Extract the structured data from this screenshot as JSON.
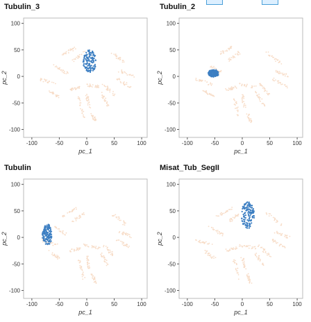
{
  "legend_swatches": [
    "#4a9fd8",
    "#4a9fd8"
  ],
  "colors": {
    "background_points": "#f7dcc7",
    "highlight": "#3d7fc2",
    "frame": "#bbbbbb"
  },
  "chart_data": [
    {
      "type": "scatter",
      "title": "Tubulin_3",
      "xlabel": "pc_1",
      "ylabel": "pc_2",
      "xlim": [
        -115,
        110
      ],
      "ylim": [
        -115,
        110
      ],
      "xticks": [
        -100,
        -50,
        0,
        50,
        100
      ],
      "yticks": [
        100,
        50,
        0,
        -50,
        -100
      ],
      "grid": false,
      "highlight_cluster": {
        "center": [
          5,
          28
        ],
        "spread": [
          12,
          22
        ]
      }
    },
    {
      "type": "scatter",
      "title": "Tubulin_2",
      "xlabel": "pc_1",
      "ylabel": "pc_2",
      "xlim": [
        -115,
        110
      ],
      "ylim": [
        -115,
        110
      ],
      "xticks": [
        -100,
        -50,
        0,
        50,
        100
      ],
      "yticks": [
        100,
        50,
        0,
        -50,
        -100
      ],
      "grid": false,
      "highlight_cluster": {
        "center": [
          -52,
          6
        ],
        "spread": [
          10,
          7
        ]
      }
    },
    {
      "type": "scatter",
      "title": "Tubulin",
      "xlabel": "pc_1",
      "ylabel": "pc_2",
      "xlim": [
        -115,
        110
      ],
      "ylim": [
        -115,
        110
      ],
      "xticks": [
        -100,
        -50,
        0,
        50,
        100
      ],
      "yticks": [
        100,
        50,
        0,
        -50,
        -100
      ],
      "grid": false,
      "highlight_cluster": {
        "center": [
          -72,
          5
        ],
        "spread": [
          9,
          20
        ]
      }
    },
    {
      "type": "scatter",
      "title": "Misat_Tub_SegII",
      "xlabel": "pc_1",
      "ylabel": "pc_2",
      "xlim": [
        -115,
        110
      ],
      "ylim": [
        -115,
        110
      ],
      "xticks": [
        -100,
        -50,
        0,
        50,
        100
      ],
      "yticks": [
        100,
        50,
        0,
        -50,
        -100
      ],
      "grid": false,
      "highlight_cluster": {
        "center": [
          10,
          42
        ],
        "spread": [
          12,
          25
        ]
      }
    }
  ]
}
